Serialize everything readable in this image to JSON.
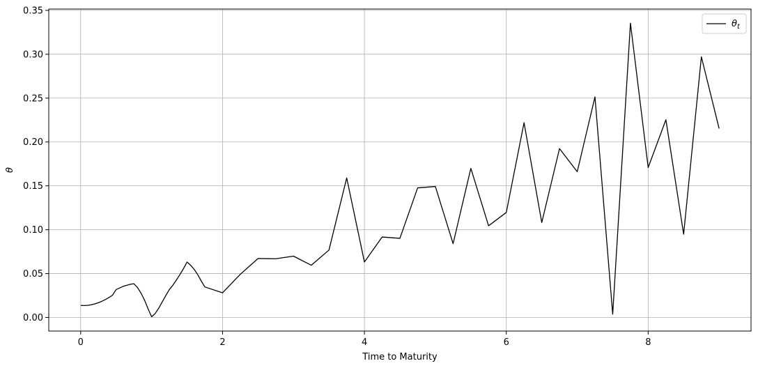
{
  "chart_data": {
    "type": "line",
    "xlabel": "Time to Maturity",
    "ylabel": "θ",
    "xlim": [
      -0.45,
      9.45
    ],
    "ylim": [
      -0.0155,
      0.3515
    ],
    "xticks": [
      0,
      2,
      4,
      6,
      8
    ],
    "xtick_labels": [
      "0",
      "2",
      "4",
      "6",
      "8"
    ],
    "yticks": [
      0.0,
      0.05,
      0.1,
      0.15,
      0.2,
      0.25,
      0.3,
      0.35
    ],
    "ytick_labels": [
      "0.00",
      "0.05",
      "0.10",
      "0.15",
      "0.20",
      "0.25",
      "0.30",
      "0.35"
    ],
    "grid": true,
    "legend_position": "top-right",
    "series": [
      {
        "name": "θ",
        "name_subscript": "t",
        "color": "#000000",
        "x": [
          0.0,
          0.05,
          0.1,
          0.15,
          0.2,
          0.25,
          0.3,
          0.35,
          0.4,
          0.45,
          0.5,
          0.6,
          0.7,
          0.75,
          0.8,
          0.85,
          0.9,
          0.95,
          1.0,
          1.05,
          1.1,
          1.15,
          1.2,
          1.25,
          1.3,
          1.35,
          1.4,
          1.45,
          1.5,
          1.55,
          1.6,
          1.65,
          1.7,
          1.75,
          2.0,
          2.25,
          2.5,
          2.75,
          3.0,
          3.25,
          3.5,
          3.75,
          4.0,
          4.25,
          4.5,
          4.75,
          5.0,
          5.25,
          5.5,
          5.75,
          6.0,
          6.25,
          6.5,
          6.75,
          7.0,
          7.25,
          7.5,
          7.75,
          8.0,
          8.25,
          8.5,
          8.75,
          9.0
        ],
        "y": [
          0.0137,
          0.0136,
          0.0138,
          0.0145,
          0.0155,
          0.0168,
          0.0185,
          0.0205,
          0.0228,
          0.0255,
          0.0318,
          0.0355,
          0.0378,
          0.0384,
          0.0342,
          0.0278,
          0.0198,
          0.0098,
          0.0008,
          0.0045,
          0.0105,
          0.0178,
          0.025,
          0.0318,
          0.0368,
          0.0428,
          0.049,
          0.0558,
          0.0632,
          0.0595,
          0.0548,
          0.0488,
          0.0415,
          0.0348,
          0.0281,
          0.0492,
          0.0672,
          0.0669,
          0.0699,
          0.0595,
          0.0768,
          0.159,
          0.0632,
          0.0917,
          0.0902,
          0.1477,
          0.1493,
          0.0841,
          0.17,
          0.1045,
          0.1197,
          0.222,
          0.1082,
          0.1924,
          0.1661,
          0.2514,
          0.0037,
          0.3354,
          0.1709,
          0.2254,
          0.0949,
          0.2971,
          0.2153
        ]
      }
    ]
  }
}
